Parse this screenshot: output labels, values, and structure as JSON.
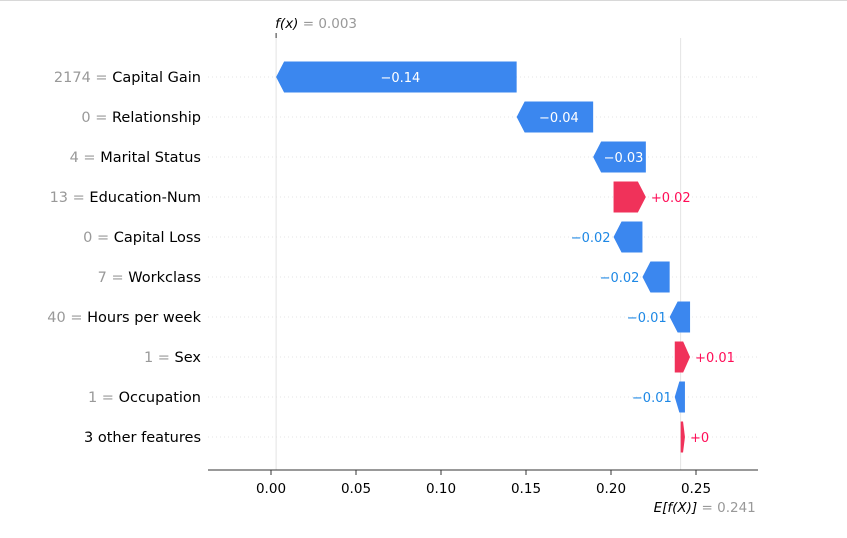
{
  "chart_data": {
    "type": "waterfall",
    "title": "",
    "xlabel": "",
    "ylabel": "",
    "xlim": [
      -0.037,
      0.287
    ],
    "x_ticks": [
      0.0,
      0.05,
      0.1,
      0.15,
      0.2,
      0.25
    ],
    "x_tick_labels": [
      "0.00",
      "0.05",
      "0.10",
      "0.15",
      "0.20",
      "0.25"
    ],
    "fx": {
      "label": "f(x)",
      "value_text": "= 0.003",
      "value": 0.003
    },
    "expected": {
      "label": "E[f(X)]",
      "value_text": "= 0.241",
      "value": 0.241
    },
    "features": [
      {
        "value": "2174",
        "name": "Capital Gain",
        "start": 0.1445,
        "end": 0.003,
        "label": "−0.14"
      },
      {
        "value": "0",
        "name": "Relationship",
        "start": 0.1895,
        "end": 0.1445,
        "label": "−0.04"
      },
      {
        "value": "4",
        "name": "Marital Status",
        "start": 0.2205,
        "end": 0.1895,
        "label": "−0.03"
      },
      {
        "value": "13",
        "name": "Education-Num",
        "start": 0.2015,
        "end": 0.2205,
        "label": "+0.02"
      },
      {
        "value": "0",
        "name": "Capital Loss",
        "start": 0.2185,
        "end": 0.2015,
        "label": "−0.02"
      },
      {
        "value": "7",
        "name": "Workclass",
        "start": 0.2345,
        "end": 0.2185,
        "label": "−0.02"
      },
      {
        "value": "40",
        "name": "Hours per week",
        "start": 0.2465,
        "end": 0.2345,
        "label": "−0.01"
      },
      {
        "value": "1",
        "name": "Sex",
        "start": 0.2375,
        "end": 0.2465,
        "label": "+0.01"
      },
      {
        "value": "1",
        "name": "Occupation",
        "start": 0.2435,
        "end": 0.2375,
        "label": "−0.01"
      },
      {
        "value": "",
        "name": "3 other features",
        "start": 0.241,
        "end": 0.2435,
        "label": "+0"
      }
    ],
    "colors": {
      "positive": "#ff0d57",
      "negative": "#1e88e5",
      "positive_bar": "#f0325a",
      "negative_bar": "#3b87ef",
      "value_text": "#999999",
      "axis": "#333333"
    },
    "grid": false,
    "legend": "none"
  }
}
